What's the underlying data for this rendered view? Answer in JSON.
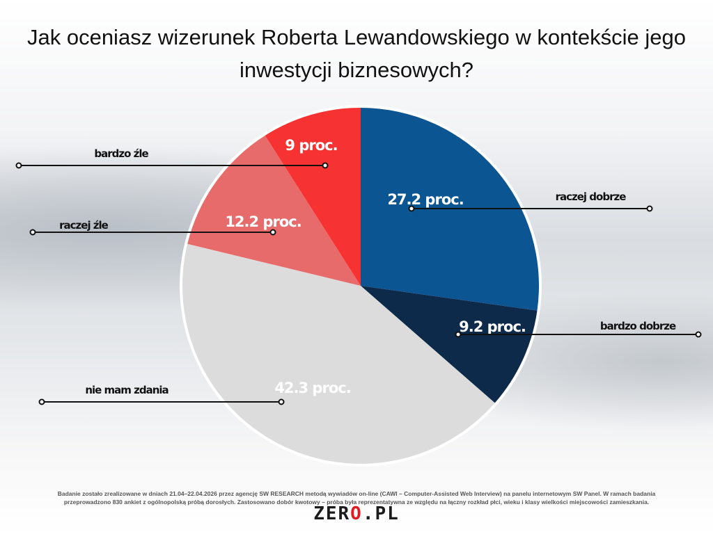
{
  "chart_data": {
    "type": "pie",
    "title": "Jak oceniasz wizerunek Roberta Lewandowskiego w kontekście jego inwestycji biznesowych?",
    "title_lines": [
      "Jak oceniasz wizerunek Roberta Lewandowskiego w kontekście jego",
      "inwestycji biznesowych?"
    ],
    "slices": [
      {
        "label": "raczej dobrze",
        "value": 27.2,
        "value_label": "27.2 proc.",
        "color": "#0b5592"
      },
      {
        "label": "bardzo dobrze",
        "value": 9.2,
        "value_label": "9.2 proc.",
        "color": "#0d2a4a"
      },
      {
        "label": "nie mam zdania",
        "value": 42.3,
        "value_label": "42.3 proc.",
        "color": "#dcdcdc"
      },
      {
        "label": "raczej źle",
        "value": 12.2,
        "value_label": "12.2 proc.",
        "color": "#e76b6b"
      },
      {
        "label": "bardzo źle",
        "value": 9,
        "value_label": "9 proc.",
        "color": "#f73232"
      }
    ]
  },
  "footer": {
    "note_line1": "Badanie zostało zrealizowane w dniach 21.04–22.04.2026 przez agencję SW RESEARCH metodą wywiadów on-line (CAWI – Computer-Assisted Web Interview) na panelu internetowym SW Panel. W ramach badania",
    "note_line2": "przeprowadzono 830 ankiet z ogólnopolską próbą dorosłych. Zastosowano dobór kwotowy – próba była reprezentatywna ze względu na łączny rozkład płci, wieku i klasy wielkości miejscowości zamieszkania.",
    "logo": "ZERO.PL"
  }
}
